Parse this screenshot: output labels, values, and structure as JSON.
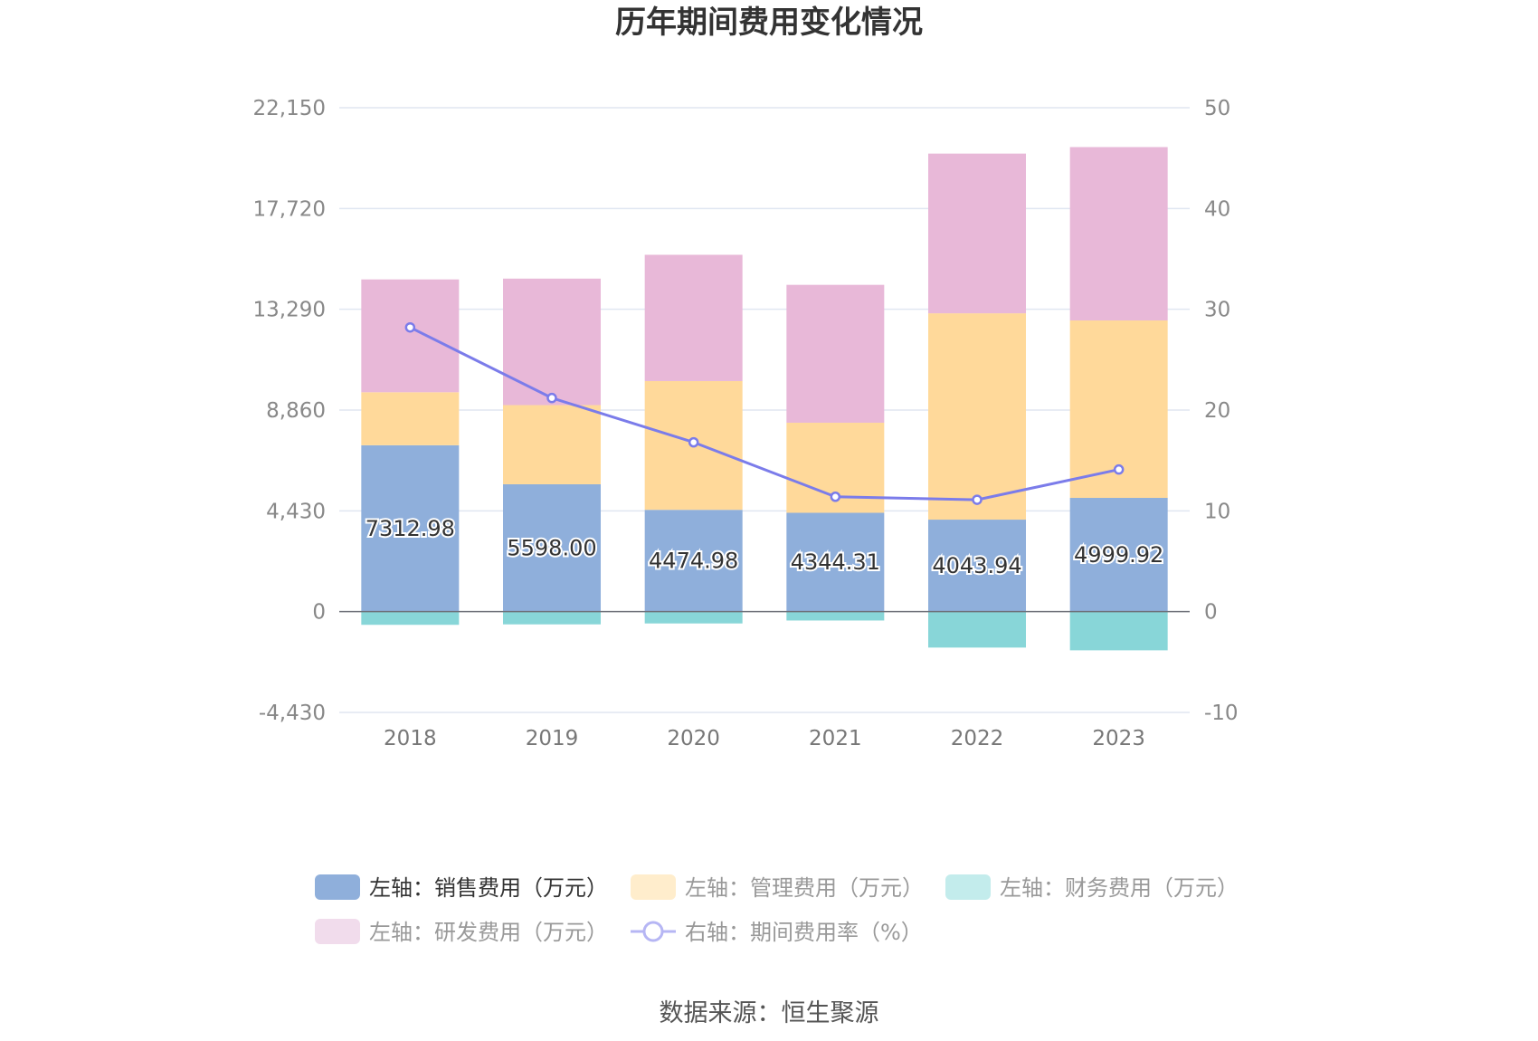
{
  "chart_data": {
    "type": "bar",
    "title": "历年期间费用变化情况",
    "categories": [
      "2018",
      "2019",
      "2020",
      "2021",
      "2022",
      "2023"
    ],
    "left_axis": {
      "ticks": [
        "22,150",
        "17,720",
        "13,290",
        "8,860",
        "4,430",
        "0",
        "-4,430"
      ],
      "range": [
        -4430,
        22150
      ]
    },
    "right_axis": {
      "ticks": [
        "50",
        "40",
        "30",
        "20",
        "10",
        "0",
        "-10"
      ],
      "range": [
        -10,
        50
      ]
    },
    "series": [
      {
        "name": "左轴：销售费用（万元）",
        "type": "bar",
        "axis": "left",
        "color": "#8fafdb",
        "values": [
          7312.98,
          5598.0,
          4474.98,
          4344.31,
          4043.94,
          4999.92
        ],
        "labels": [
          "7312.98",
          "5598.00",
          "4474.98",
          "4344.31",
          "4043.94",
          "4999.92"
        ]
      },
      {
        "name": "左轴：管理费用（万元）",
        "type": "bar",
        "axis": "left",
        "color": "#ffd99a",
        "values": [
          2330,
          3480,
          5660,
          3960,
          9070,
          7800
        ]
      },
      {
        "name": "左轴：财务费用（万元）",
        "type": "bar",
        "axis": "left",
        "color": "#88d6d8",
        "values": [
          -580,
          -560,
          -520,
          -390,
          -1580,
          -1700
        ]
      },
      {
        "name": "左轴：研发费用（万元）",
        "type": "bar",
        "axis": "left",
        "color": "#e8b8d8",
        "values": [
          4960,
          5560,
          5550,
          6060,
          7020,
          7620
        ]
      },
      {
        "name": "右轴：期间费用率（%）",
        "type": "line",
        "axis": "right",
        "color": "#7b7cea",
        "values": [
          28.2,
          21.2,
          16.8,
          11.4,
          11.1,
          14.1
        ]
      }
    ],
    "legend": [
      {
        "label": "左轴：销售费用（万元）",
        "color": "#8fafdb",
        "text_color": "#333333",
        "kind": "rect"
      },
      {
        "label": "左轴：管理费用（万元）",
        "color": "#ffedcc",
        "text_color": "#999999",
        "kind": "rect"
      },
      {
        "label": "左轴：财务费用（万元）",
        "color": "#c3ecec",
        "text_color": "#999999",
        "kind": "rect"
      },
      {
        "label": "左轴：研发费用（万元）",
        "color": "#f1dcec",
        "text_color": "#999999",
        "kind": "rect"
      },
      {
        "label": "右轴：期间费用率（%）",
        "color": "#b6b6f4",
        "text_color": "#999999",
        "kind": "line"
      }
    ],
    "source": "数据来源：恒生聚源"
  }
}
